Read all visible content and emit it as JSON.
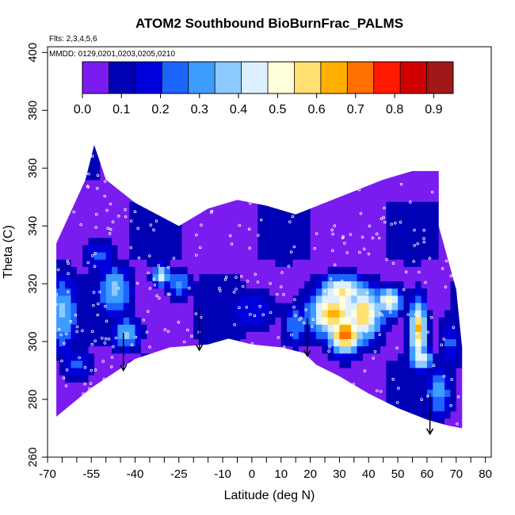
{
  "chart_data": {
    "type": "heatmap",
    "title": "ATOM2 Southbound BioBurnFrac_PALMS",
    "flights_note": "Flts: 2,3,4,5,6",
    "dates_note": "MMDD: 0129,0201,0203,0205,0210",
    "xlabel": "Latitude (deg N)",
    "ylabel": "Theta (C)",
    "xlim": [
      -70,
      82
    ],
    "ylim": [
      260,
      402
    ],
    "x_ticks": [
      -70,
      -55,
      -40,
      -25,
      -10,
      0,
      10,
      20,
      30,
      40,
      50,
      60,
      70,
      80
    ],
    "x_minor_ticks": [
      -65,
      -60,
      -50,
      -45,
      -35,
      -30,
      -20,
      -15,
      -5,
      5,
      15,
      25,
      35,
      45,
      55,
      65,
      75
    ],
    "y_ticks": [
      260,
      280,
      300,
      320,
      340,
      360,
      380,
      400
    ],
    "colorbar": {
      "ticks": [
        0.0,
        0.1,
        0.2,
        0.3,
        0.4,
        0.5,
        0.6,
        0.7,
        0.8,
        0.9
      ],
      "tick_labels": [
        "0.0",
        "0.1",
        "0.2",
        "0.3",
        "0.4",
        "0.5",
        "0.6",
        "0.7",
        "0.8",
        "0.9"
      ],
      "range": [
        0,
        0.95
      ],
      "colors": [
        "#7a1cf0",
        "#0000b4",
        "#0000dc",
        "#1e64ff",
        "#3c9cff",
        "#8ccaff",
        "#dcf0ff",
        "#ffffdc",
        "#ffe070",
        "#ffb000",
        "#ff7000",
        "#ff1a00",
        "#d00000",
        "#a01818"
      ]
    },
    "domain_bottom": [
      [
        -67,
        274
      ],
      [
        -55,
        284
      ],
      [
        -46,
        290
      ],
      [
        -40,
        294
      ],
      [
        -28,
        298
      ],
      [
        -15,
        299
      ],
      [
        -8,
        301
      ],
      [
        0,
        299
      ],
      [
        10,
        298
      ],
      [
        18,
        296
      ],
      [
        22,
        292
      ],
      [
        30,
        288
      ],
      [
        40,
        282
      ],
      [
        50,
        277
      ],
      [
        60,
        273
      ],
      [
        67,
        271
      ],
      [
        72,
        270
      ]
    ],
    "domain_top": [
      [
        -67,
        334
      ],
      [
        -57,
        356
      ],
      [
        -54,
        368
      ],
      [
        -50,
        356
      ],
      [
        -40,
        348
      ],
      [
        -25,
        340
      ],
      [
        -15,
        346
      ],
      [
        -5,
        349
      ],
      [
        5,
        347
      ],
      [
        15,
        344
      ],
      [
        25,
        348
      ],
      [
        35,
        352
      ],
      [
        45,
        356
      ],
      [
        55,
        359
      ],
      [
        64,
        359
      ],
      [
        64,
        340
      ],
      [
        70,
        318
      ],
      [
        72,
        298
      ]
    ],
    "blobs": [
      {
        "lat": 32,
        "theta": 303,
        "value": 0.74,
        "rlat": 6,
        "rtheta": 7
      },
      {
        "lat": 28,
        "theta": 310,
        "value": 0.62,
        "rlat": 9,
        "rtheta": 9
      },
      {
        "lat": 38,
        "theta": 310,
        "value": 0.6,
        "rlat": 7,
        "rtheta": 10
      },
      {
        "lat": 47,
        "theta": 314,
        "value": 0.52,
        "rlat": 5,
        "rtheta": 5
      },
      {
        "lat": 57,
        "theta": 304,
        "value": 0.62,
        "rlat": 3,
        "rtheta": 11
      },
      {
        "lat": 58,
        "theta": 294,
        "value": 0.5,
        "rlat": 4,
        "rtheta": 4
      },
      {
        "lat": 31,
        "theta": 317,
        "value": 0.55,
        "rlat": 9,
        "rtheta": 6
      },
      {
        "lat": -65,
        "theta": 310,
        "value": 0.35,
        "rlat": 6,
        "rtheta": 14
      },
      {
        "lat": -47,
        "theta": 318,
        "value": 0.38,
        "rlat": 6,
        "rtheta": 9
      },
      {
        "lat": -43,
        "theta": 303,
        "value": 0.35,
        "rlat": 5,
        "rtheta": 6
      },
      {
        "lat": -31,
        "theta": 323,
        "value": 0.47,
        "rlat": 3,
        "rtheta": 4
      },
      {
        "lat": -25,
        "theta": 320,
        "value": 0.3,
        "rlat": 5,
        "rtheta": 5
      },
      {
        "lat": -52,
        "theta": 330,
        "value": 0.24,
        "rlat": 6,
        "rtheta": 6
      },
      {
        "lat": -60,
        "theta": 292,
        "value": 0.24,
        "rlat": 5,
        "rtheta": 6
      },
      {
        "lat": 15,
        "theta": 306,
        "value": 0.26,
        "rlat": 5,
        "rtheta": 8
      },
      {
        "lat": 0,
        "theta": 311,
        "value": 0.2,
        "rlat": 10,
        "rtheta": 7
      },
      {
        "lat": 64,
        "theta": 283,
        "value": 0.3,
        "rlat": 5,
        "rtheta": 10
      },
      {
        "lat": 68,
        "theta": 300,
        "value": 0.22,
        "rlat": 4,
        "rtheta": 10
      }
    ],
    "descent_arrows": [
      {
        "lat": -44,
        "theta_start": 303,
        "theta_end": 290
      },
      {
        "lat": -18,
        "theta_start": 312,
        "theta_end": 297
      },
      {
        "lat": 19,
        "theta_start": 308,
        "theta_end": 295
      },
      {
        "lat": 61,
        "theta_start": 282,
        "theta_end": 268
      }
    ]
  }
}
